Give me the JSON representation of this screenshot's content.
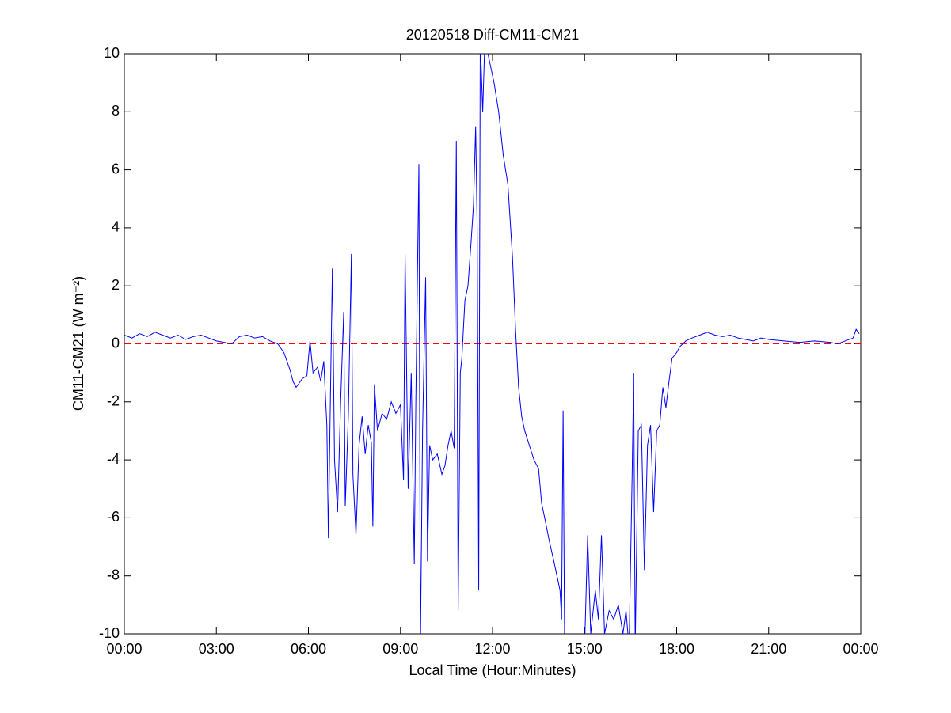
{
  "chart_data": {
    "type": "line",
    "title": "20120518 Diff-CM11-CM21",
    "x_label": "Local Time (Hour:Minutes)",
    "y_label": "CM11-CM21 (W m⁻²)",
    "xlim": [
      0,
      24
    ],
    "xticks": [
      {
        "value": 0,
        "label": "00:00"
      },
      {
        "value": 3,
        "label": "03:00"
      },
      {
        "value": 6,
        "label": "06:00"
      },
      {
        "value": 9,
        "label": "09:00"
      },
      {
        "value": 12,
        "label": "12:00"
      },
      {
        "value": 15,
        "label": "15:00"
      },
      {
        "value": 18,
        "label": "18:00"
      },
      {
        "value": 21,
        "label": "21:00"
      },
      {
        "value": 24,
        "label": "00:00"
      }
    ],
    "ylim": [
      -10,
      10
    ],
    "yticks": [
      -10,
      -8,
      -6,
      -4,
      -2,
      0,
      2,
      4,
      6,
      8,
      10
    ],
    "reference_line": {
      "value": 0,
      "color": "#ff0000"
    },
    "series": [
      {
        "color": "#0000ff",
        "x": [
          0,
          0.25,
          0.5,
          0.75,
          1,
          1.25,
          1.5,
          1.75,
          2,
          2.25,
          2.5,
          2.75,
          3,
          3.25,
          3.5,
          3.75,
          4,
          4.25,
          4.5,
          4.75,
          5,
          5.2,
          5.4,
          5.5,
          5.6,
          5.8,
          5.95,
          6.05,
          6.15,
          6.3,
          6.4,
          6.5,
          6.6,
          6.65,
          6.7,
          6.78,
          6.85,
          6.95,
          7.05,
          7.15,
          7.2,
          7.3,
          7.4,
          7.45,
          7.55,
          7.65,
          7.75,
          7.85,
          7.95,
          8.05,
          8.1,
          8.15,
          8.25,
          8.4,
          8.55,
          8.7,
          8.85,
          9,
          9.1,
          9.15,
          9.25,
          9.35,
          9.45,
          9.5,
          9.6,
          9.65,
          9.72,
          9.82,
          9.88,
          9.95,
          10.05,
          10.2,
          10.35,
          10.45,
          10.55,
          10.65,
          10.75,
          10.82,
          10.88,
          10.95,
          11,
          11.1,
          11.2,
          11.3,
          11.38,
          11.45,
          11.5,
          11.55,
          11.6,
          11.68,
          11.75,
          11.85,
          11.95,
          12.05,
          12.2,
          12.35,
          12.5,
          12.65,
          12.75,
          12.85,
          12.95,
          13.05,
          13.2,
          13.35,
          13.5,
          13.6,
          13.7,
          13.85,
          14,
          14.1,
          14.2,
          14.25,
          14.3,
          14.35,
          14.5,
          15,
          15.1,
          15.2,
          15.35,
          15.45,
          15.55,
          15.65,
          15.8,
          15.95,
          16.1,
          16.25,
          16.35,
          16.45,
          16.55,
          16.6,
          16.65,
          16.75,
          16.85,
          16.95,
          17.05,
          17.15,
          17.25,
          17.35,
          17.45,
          17.55,
          17.65,
          17.75,
          17.85,
          18,
          18.1,
          18.3,
          18.5,
          18.75,
          19,
          19.25,
          19.5,
          19.75,
          20,
          20.25,
          20.5,
          20.75,
          21,
          21.5,
          22,
          22.5,
          23,
          23.25,
          23.5,
          23.75,
          23.85,
          23.95
        ],
        "values": [
          0.3,
          0.2,
          0.35,
          0.25,
          0.4,
          0.3,
          0.2,
          0.3,
          0.15,
          0.25,
          0.3,
          0.2,
          0.1,
          0.05,
          0,
          0.25,
          0.3,
          0.2,
          0.25,
          0.1,
          0,
          -0.3,
          -0.9,
          -1.3,
          -1.5,
          -1.2,
          -1.1,
          0.1,
          -1,
          -0.8,
          -1.3,
          -0.6,
          -2.8,
          -6.7,
          -3,
          2.6,
          -4,
          -5.8,
          -2,
          1.1,
          -5.6,
          -2.5,
          3.1,
          -4.5,
          -6.6,
          -3.5,
          -2.5,
          -3.8,
          -2.8,
          -3.4,
          -6.3,
          -1.4,
          -3,
          -2.4,
          -2.6,
          -2,
          -2.4,
          -2.1,
          -4.7,
          3.1,
          -5,
          -1,
          -7.6,
          -2,
          6.2,
          -10.5,
          -3,
          2.3,
          -7.5,
          -3.5,
          -4,
          -3.8,
          -4.5,
          -4.2,
          -3.5,
          -3,
          -3.6,
          7,
          -9.2,
          -1,
          -0.5,
          1.5,
          2,
          3.5,
          4.8,
          7.5,
          4,
          -8.5,
          10.5,
          8,
          10.5,
          10,
          9.5,
          9,
          8,
          6.5,
          5.5,
          3,
          0.5,
          -1.5,
          -2.5,
          -3,
          -3.5,
          -4,
          -4.3,
          -5.5,
          -6,
          -6.8,
          -7.5,
          -8,
          -8.5,
          -9.5,
          -2.3,
          -10.5,
          -10.5,
          -10.5,
          -6.6,
          -10,
          -8.5,
          -9.5,
          -6.6,
          -10,
          -9.2,
          -9.5,
          -9,
          -10,
          -9.2,
          -10.5,
          -4.5,
          -1,
          -10.5,
          -3,
          -2.8,
          -7.8,
          -3.5,
          -2.8,
          -5.8,
          -3,
          -2.8,
          -1.5,
          -2.2,
          -1.3,
          -0.5,
          -0.3,
          -0.1,
          0.1,
          0.2,
          0.3,
          0.4,
          0.3,
          0.25,
          0.3,
          0.2,
          0.15,
          0.1,
          0.2,
          0.15,
          0.1,
          0.05,
          0.1,
          0.05,
          0,
          0.1,
          0.2,
          0.5,
          0.35
        ]
      }
    ]
  }
}
